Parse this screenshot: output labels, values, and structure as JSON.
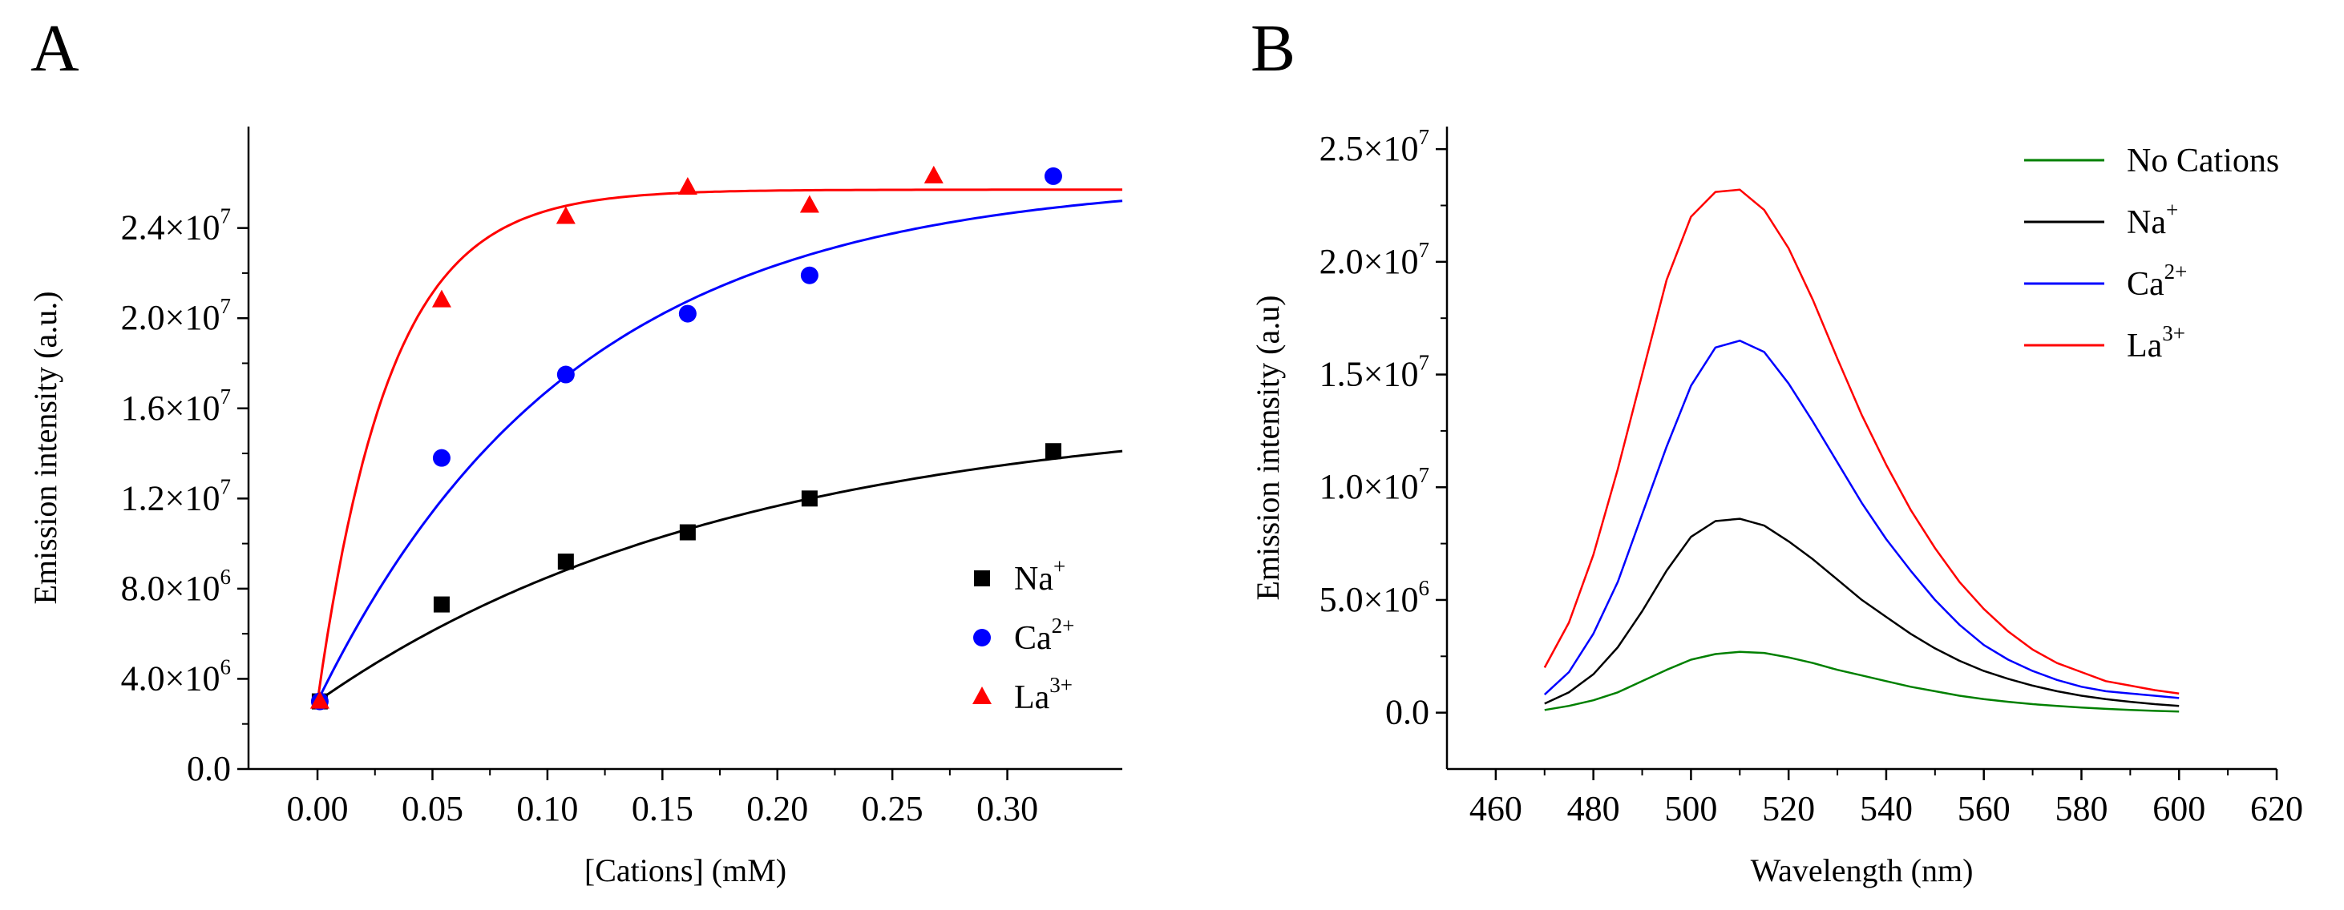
{
  "figure": {
    "panels": [
      {
        "label": "A"
      },
      {
        "label": "B"
      }
    ]
  },
  "chart_data": [
    {
      "panel": "A",
      "type": "scatter",
      "xlabel": "[Cations] (mM)",
      "ylabel": "Emission intensity (a.u.)",
      "xlim": [
        -0.03,
        0.35
      ],
      "ylim": [
        0,
        28500000
      ],
      "xticks": [
        0.0,
        0.05,
        0.1,
        0.15,
        0.2,
        0.25,
        0.3
      ],
      "xtick_labels": [
        "0.00",
        "0.05",
        "0.10",
        "0.15",
        "0.20",
        "0.25",
        "0.30"
      ],
      "yticks": [
        0,
        4000000,
        8000000,
        12000000,
        16000000,
        20000000,
        24000000
      ],
      "ytick_labels": [
        {
          "mant": "0.0",
          "exp": ""
        },
        {
          "mant": "4.0×10",
          "exp": "6"
        },
        {
          "mant": "8.0×10",
          "exp": "6"
        },
        {
          "mant": "1.2×10",
          "exp": "7"
        },
        {
          "mant": "1.6×10",
          "exp": "7"
        },
        {
          "mant": "2.0×10",
          "exp": "7"
        },
        {
          "mant": "2.4×10",
          "exp": "7"
        }
      ],
      "legend_position": "right",
      "series": [
        {
          "name": "Na",
          "charge": "+",
          "color": "#000000",
          "marker": "square",
          "x": [
            0.001,
            0.054,
            0.108,
            0.161,
            0.214,
            0.32
          ],
          "y": [
            3000000,
            7300000,
            9200000,
            10500000,
            12000000,
            14100000
          ],
          "fit": {
            "y0": 3000000,
            "A": 13000000,
            "k": 5.5
          }
        },
        {
          "name": "Ca",
          "charge": "2+",
          "color": "#0000ff",
          "marker": "circle",
          "x": [
            0.001,
            0.054,
            0.108,
            0.161,
            0.214,
            0.32
          ],
          "y": [
            3000000,
            13800000,
            17500000,
            20200000,
            21900000,
            26300000
          ],
          "fit": {
            "y0": 3000000,
            "A": 23200000,
            "k": 9.0
          }
        },
        {
          "name": "La",
          "charge": "3+",
          "color": "#ff0000",
          "marker": "triangle",
          "x": [
            0.001,
            0.054,
            0.108,
            0.161,
            0.214,
            0.268
          ],
          "y": [
            3000000,
            20800000,
            24500000,
            25800000,
            25000000,
            26300000
          ],
          "fit": {
            "y0": 3000000,
            "A": 22700000,
            "k": 32.0
          }
        }
      ]
    },
    {
      "panel": "B",
      "type": "line",
      "xlabel": "Wavelength (nm)",
      "ylabel": "Emission intensity (a.u)",
      "xlim": [
        450,
        620
      ],
      "ylim": [
        -2500000,
        26000000
      ],
      "xticks": [
        460,
        480,
        500,
        520,
        540,
        560,
        580,
        600,
        620
      ],
      "xtick_labels": [
        "460",
        "480",
        "500",
        "520",
        "540",
        "560",
        "580",
        "600",
        "620"
      ],
      "yticks": [
        0,
        5000000,
        10000000,
        15000000,
        20000000,
        25000000
      ],
      "ytick_labels": [
        {
          "mant": "0.0",
          "exp": ""
        },
        {
          "mant": "5.0×10",
          "exp": "6"
        },
        {
          "mant": "1.0×10",
          "exp": "7"
        },
        {
          "mant": "1.5×10",
          "exp": "7"
        },
        {
          "mant": "2.0×10",
          "exp": "7"
        },
        {
          "mant": "2.5×10",
          "exp": "7"
        }
      ],
      "legend_position": "top-right",
      "x": [
        470,
        475,
        480,
        485,
        490,
        495,
        500,
        505,
        510,
        515,
        520,
        525,
        530,
        535,
        540,
        545,
        550,
        555,
        560,
        565,
        570,
        575,
        580,
        585,
        590,
        595,
        600
      ],
      "series": [
        {
          "name": "No Cations",
          "charge": "",
          "color": "#008000",
          "y": [
            120000,
            300000,
            550000,
            900000,
            1400000,
            1900000,
            2350000,
            2600000,
            2700000,
            2650000,
            2450000,
            2200000,
            1900000,
            1650000,
            1400000,
            1150000,
            950000,
            750000,
            600000,
            480000,
            380000,
            300000,
            230000,
            170000,
            120000,
            80000,
            50000
          ]
        },
        {
          "name": "Na",
          "charge": "+",
          "color": "#000000",
          "y": [
            400000,
            900000,
            1700000,
            2900000,
            4500000,
            6300000,
            7800000,
            8500000,
            8600000,
            8300000,
            7600000,
            6800000,
            5900000,
            5000000,
            4250000,
            3500000,
            2850000,
            2300000,
            1850000,
            1500000,
            1200000,
            950000,
            750000,
            600000,
            480000,
            380000,
            300000
          ]
        },
        {
          "name": "Ca",
          "charge": "2+",
          "color": "#0000ff",
          "y": [
            800000,
            1800000,
            3500000,
            5800000,
            8800000,
            11800000,
            14500000,
            16200000,
            16500000,
            16000000,
            14600000,
            12900000,
            11100000,
            9300000,
            7700000,
            6300000,
            5000000,
            3900000,
            3000000,
            2350000,
            1850000,
            1450000,
            1150000,
            950000,
            850000,
            750000,
            650000
          ]
        },
        {
          "name": "La",
          "charge": "3+",
          "color": "#ff0000",
          "y": [
            2000000,
            4000000,
            7000000,
            10800000,
            15000000,
            19200000,
            22000000,
            23100000,
            23200000,
            22300000,
            20600000,
            18300000,
            15700000,
            13200000,
            11000000,
            9000000,
            7300000,
            5800000,
            4600000,
            3600000,
            2800000,
            2200000,
            1800000,
            1400000,
            1200000,
            1000000,
            850000
          ]
        }
      ]
    }
  ]
}
